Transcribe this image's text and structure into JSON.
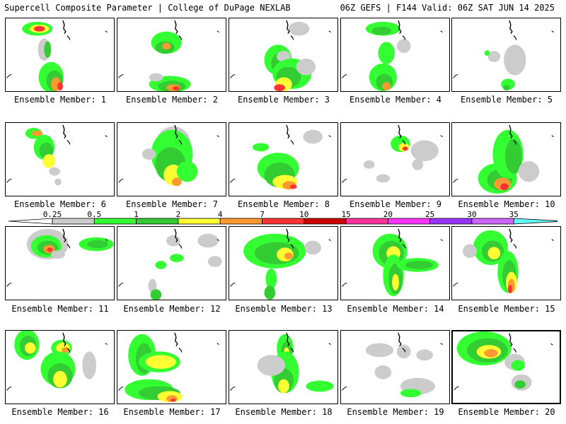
{
  "header": {
    "left_title": "Supercell Composite Parameter | College of DuPage NEXLAB",
    "right_title": "06Z GEFS | F144 Valid: 06Z SAT JUN 14 2025"
  },
  "colorbar": {
    "labels": [
      "0.25",
      "0.5",
      "1",
      "2",
      "4",
      "7",
      "10",
      "15",
      "20",
      "25",
      "30",
      "35"
    ],
    "colors": [
      "#cccccc",
      "#33ff33",
      "#33cc33",
      "#ffff33",
      "#ff9933",
      "#ff3333",
      "#cc0000",
      "#ff3399",
      "#ff33ff",
      "#9933ff",
      "#cc66ff",
      "#66ffff"
    ]
  },
  "members": [
    {
      "label": "Ensemble Member: 1"
    },
    {
      "label": "Ensemble Member: 2"
    },
    {
      "label": "Ensemble Member: 3"
    },
    {
      "label": "Ensemble Member: 4"
    },
    {
      "label": "Ensemble Member: 5"
    },
    {
      "label": "Ensemble Member: 6"
    },
    {
      "label": "Ensemble Member: 7"
    },
    {
      "label": "Ensemble Member: 8"
    },
    {
      "label": "Ensemble Member: 9"
    },
    {
      "label": "Ensemble Member: 10"
    },
    {
      "label": "Ensemble Member: 11"
    },
    {
      "label": "Ensemble Member: 12"
    },
    {
      "label": "Ensemble Member: 13"
    },
    {
      "label": "Ensemble Member: 14"
    },
    {
      "label": "Ensemble Member: 15"
    },
    {
      "label": "Ensemble Member: 16"
    },
    {
      "label": "Ensemble Member: 17"
    },
    {
      "label": "Ensemble Member: 18"
    },
    {
      "label": "Ensemble Member: 19"
    },
    {
      "label": "Ensemble Member: 20",
      "selected": true
    }
  ]
}
